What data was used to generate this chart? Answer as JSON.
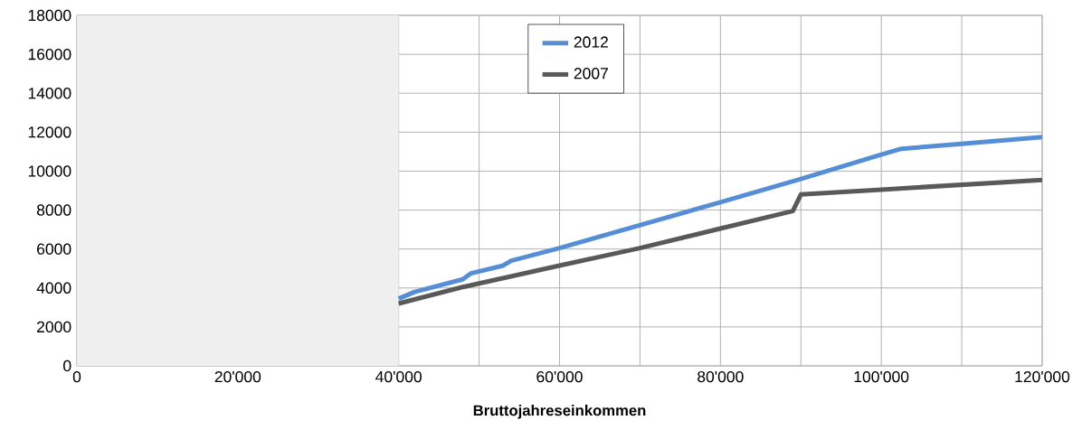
{
  "chart_data": {
    "type": "line",
    "xlabel": "**Bruttojahreseinkommen**",
    "xlim": [
      0,
      120000
    ],
    "ylim": [
      0,
      18000
    ],
    "xticks": [
      0,
      {
        "value": 10000,
        "label": null
      },
      {
        "value": 20000,
        "label": "20'000"
      },
      {
        "value": 30000,
        "label": null
      },
      {
        "value": 40000,
        "label": "40'000"
      },
      {
        "value": 50000,
        "label": null
      },
      {
        "value": 60000,
        "label": "60'000"
      },
      {
        "value": 70000,
        "label": null
      },
      {
        "value": 80000,
        "label": "80'000"
      },
      {
        "value": 90000,
        "label": null
      },
      {
        "value": 100000,
        "label": "100'000"
      },
      {
        "value": 110000,
        "label": null
      },
      {
        "value": 120000,
        "label": "120'000"
      }
    ],
    "yticks": [
      0,
      2000,
      4000,
      6000,
      8000,
      10000,
      12000,
      14000,
      16000,
      18000
    ],
    "grid": true,
    "legend": "top",
    "marker": "none",
    "line_style": "solid",
    "bands": [
      {
        "axis": "x",
        "from": 0,
        "to": 40000,
        "color": "#efefef"
      }
    ],
    "series": [
      {
        "name": "2012",
        "color": "#558ed5",
        "x": [
          40000,
          42000,
          48000,
          49000,
          53000,
          54000,
          60000,
          80000,
          90000,
          100000,
          102500,
          110000,
          120000
        ],
        "values": [
          3450,
          3800,
          4450,
          4750,
          5150,
          5400,
          6050,
          8400,
          9600,
          10850,
          11150,
          11400,
          11750
        ]
      },
      {
        "name": "2007",
        "color": "#595959",
        "x": [
          40000,
          48000,
          60000,
          70000,
          80000,
          89000,
          90000,
          100000,
          120000
        ],
        "values": [
          3200,
          4050,
          5150,
          6050,
          7050,
          7950,
          8800,
          9050,
          9550
        ]
      }
    ]
  }
}
